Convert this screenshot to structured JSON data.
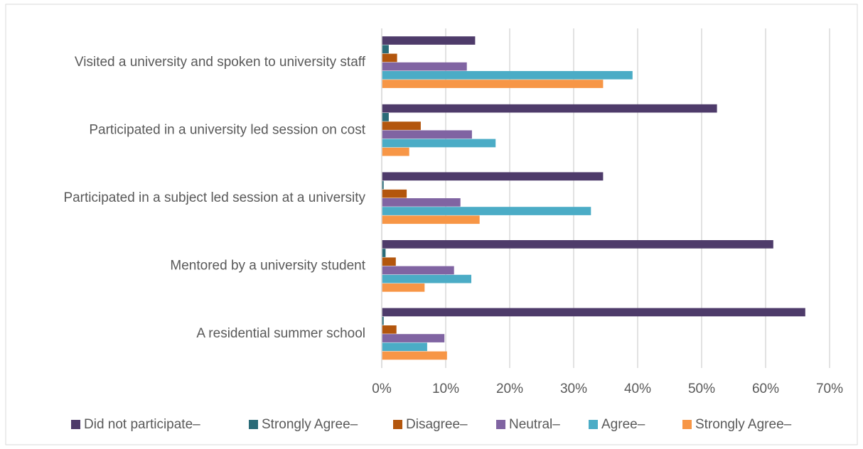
{
  "chart_data": {
    "type": "bar",
    "orientation": "horizontal",
    "categories": [
      "Visited a university and spoken to university staff",
      "Participated in a university led session on cost",
      "Participated in a subject led session at a university",
      "Mentored by a university student",
      "A residential summer school"
    ],
    "series": [
      {
        "name": "Did not participate–",
        "color": "#4e3b6a",
        "values": [
          14.6,
          52.4,
          34.6,
          61.2,
          66.2
        ]
      },
      {
        "name": "Strongly Agree–",
        "color": "#2a6b78",
        "values": [
          1.1,
          1.1,
          0.3,
          0.6,
          0.3
        ]
      },
      {
        "name": "Disagree–",
        "color": "#b3560d",
        "values": [
          2.4,
          6.1,
          3.9,
          2.2,
          2.3
        ]
      },
      {
        "name": "Neutral–",
        "color": "#8064a2",
        "values": [
          13.3,
          14.1,
          12.3,
          11.3,
          9.8
        ]
      },
      {
        "name": "Agree–",
        "color": "#4bacc6",
        "values": [
          39.2,
          17.8,
          32.7,
          14.0,
          7.1
        ]
      },
      {
        "name": "Strongly Agree–",
        "color": "#f79646",
        "values": [
          34.6,
          4.3,
          15.3,
          6.7,
          10.2
        ]
      }
    ],
    "xlim": [
      0,
      70
    ],
    "xticks": [
      {
        "value": 0,
        "label": "0%"
      },
      {
        "value": 10,
        "label": "10%"
      },
      {
        "value": 20,
        "label": "20%"
      },
      {
        "value": 30,
        "label": "30%"
      },
      {
        "value": 40,
        "label": "40%"
      },
      {
        "value": 50,
        "label": "50%"
      },
      {
        "value": 60,
        "label": "60%"
      },
      {
        "value": 70,
        "label": "70%"
      }
    ],
    "grid": true,
    "legend": "bottom"
  }
}
